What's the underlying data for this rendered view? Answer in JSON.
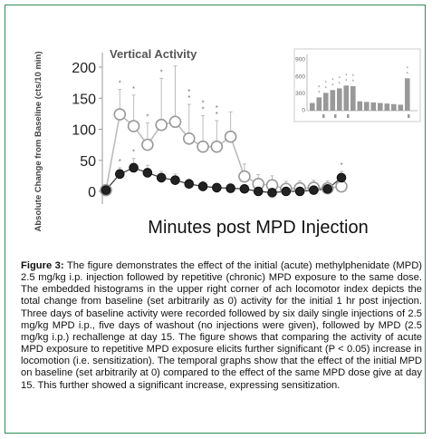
{
  "chart_data": [
    {
      "type": "line",
      "title": "Vertical Activity",
      "xlabel": "Minutes post MPD Injection",
      "ylabel": "Absolute Change from Baseline (cts/10 min)",
      "yticks": [
        "200",
        "150",
        "100",
        "50",
        "0"
      ],
      "ylim": [
        -10,
        210
      ],
      "grid": false,
      "series": [
        {
          "name": "",
          "marker": "open-circle",
          "x": [
            1,
            2,
            3,
            4,
            5,
            6,
            7,
            8,
            9,
            10,
            11,
            12,
            13,
            14,
            15,
            16,
            17,
            18
          ],
          "values": [
            2,
            124,
            105,
            75,
            107,
            112,
            85,
            72,
            72,
            88,
            24,
            12,
            10,
            4,
            5,
            6,
            5,
            8
          ],
          "error": [
            0,
            40,
            50,
            35,
            75,
            90,
            55,
            50,
            42,
            40,
            20,
            15,
            15,
            12,
            12,
            12,
            12,
            16
          ],
          "significance_marks": [
            0,
            1,
            1,
            1,
            1,
            2,
            2,
            2,
            2,
            0,
            0,
            0,
            0,
            0,
            0,
            0,
            0,
            0
          ]
        },
        {
          "name": "",
          "marker": "filled-circle",
          "x": [
            1,
            2,
            3,
            4,
            5,
            6,
            7,
            8,
            9,
            10,
            11,
            12,
            13,
            14,
            15,
            16,
            17,
            18
          ],
          "values": [
            2,
            28,
            38,
            30,
            22,
            18,
            12,
            8,
            6,
            5,
            4,
            0,
            -2,
            0,
            0,
            2,
            4,
            22
          ],
          "error": [
            0,
            10,
            15,
            12,
            10,
            10,
            8,
            8,
            6,
            6,
            6,
            6,
            6,
            6,
            6,
            6,
            6,
            10
          ],
          "significance_marks": [
            0,
            1,
            1,
            0,
            0,
            0,
            0,
            0,
            0,
            0,
            0,
            0,
            0,
            0,
            0,
            0,
            0,
            1
          ]
        }
      ]
    },
    {
      "type": "bar",
      "title": "",
      "yticks": [
        "900",
        "600",
        "300",
        "0"
      ],
      "ylim": [
        0,
        1000
      ],
      "tick_marks": [
        "",
        "",
        "",
        ""
      ],
      "categories": [
        "1",
        "2",
        "3",
        "4",
        "5",
        "6",
        "7",
        "8",
        "9",
        "10",
        "11",
        "12",
        "13",
        "14",
        "15"
      ],
      "values": [
        120,
        220,
        300,
        350,
        380,
        430,
        420,
        150,
        140,
        130,
        120,
        110,
        100,
        90,
        560
      ],
      "colors": [
        "#999999"
      ]
    }
  ],
  "caption": {
    "label": "Figure 3:",
    "lines": [
      "The figure demonstrates the effect of the initial (acute)",
      "methylphenidate (MPD) 2.5 mg/kg i.p. injection followed by repetitive (chronic)",
      "MPD exposure to the same dose. The embedded histograms in the upper",
      "right corner of ach locomotor index depicts the total change from baseline",
      "(set arbitrarily as 0) activity for the initial 1 hr post injection. Three days of",
      "baseline activity were recorded followed by six daily single injections of 2.5",
      "mg/kg MPD i.p., five days of washout (no injections were given), followed by",
      "MPD (2.5 mg/kg i.p.) rechallenge at day 15. The figure shows that comparing",
      "the activity of acute MPD exposure to repetitive MPD exposure elicits further",
      "significant (P < 0.05) increase in locomotion (i.e. sensitization). The temporal",
      "graphs show that the effect of the initial MPD on baseline (set arbitrarily at",
      "0) compared to the effect of the same MPD dose give at day 15. This further",
      "showed a significant increase, expressing sensitization."
    ]
  },
  "colors": {
    "frame": "#2e8b57",
    "open_line": "#bbbbbb",
    "filled_marker": "#222222",
    "inset_bar": "#999999"
  }
}
